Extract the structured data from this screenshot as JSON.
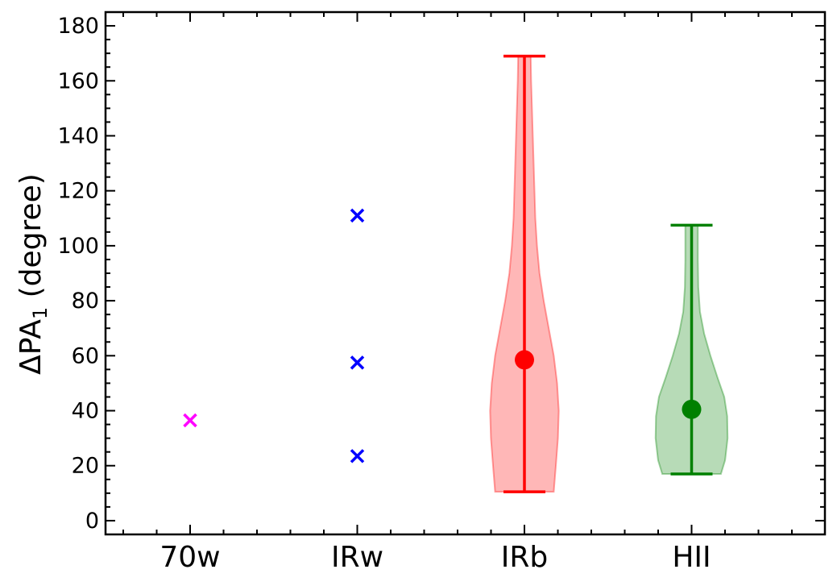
{
  "chart_data": {
    "type": "violin",
    "title": "",
    "xlabel": "",
    "ylabel_prefix": "ΔPA",
    "ylabel_sub": "1",
    "ylabel_suffix": " (degree)",
    "ylim": [
      -5,
      185
    ],
    "yticks": [
      0,
      20,
      40,
      60,
      80,
      100,
      120,
      140,
      160,
      180
    ],
    "categories": [
      "70w",
      "IRw",
      "IRb",
      "HII"
    ],
    "points": [
      {
        "category": "70w",
        "values": [
          36.5
        ],
        "color": "#ff00ff",
        "marker": "x"
      },
      {
        "category": "IRw",
        "values": [
          111,
          57.5,
          23.5
        ],
        "color": "#0000ff",
        "marker": "x"
      }
    ],
    "violins": [
      {
        "category": "IRb",
        "color": "#ff0000",
        "fill": "#ffb3b3",
        "min": 10.5,
        "max": 169,
        "median": 58.5,
        "density": [
          [
            10.5,
            0.7
          ],
          [
            20,
            0.75
          ],
          [
            30,
            0.8
          ],
          [
            40,
            0.82
          ],
          [
            50,
            0.78
          ],
          [
            60,
            0.7
          ],
          [
            70,
            0.58
          ],
          [
            80,
            0.46
          ],
          [
            90,
            0.36
          ],
          [
            100,
            0.3
          ],
          [
            110,
            0.26
          ],
          [
            120,
            0.24
          ],
          [
            130,
            0.22
          ],
          [
            140,
            0.2
          ],
          [
            150,
            0.18
          ],
          [
            160,
            0.16
          ],
          [
            169,
            0.15
          ]
        ]
      },
      {
        "category": "HII",
        "color": "#008000",
        "fill": "#b3d9b3",
        "min": 17,
        "max": 107.5,
        "median": 40.5,
        "density": [
          [
            17,
            0.7
          ],
          [
            22,
            0.8
          ],
          [
            30,
            0.86
          ],
          [
            38,
            0.85
          ],
          [
            45,
            0.78
          ],
          [
            52,
            0.62
          ],
          [
            60,
            0.45
          ],
          [
            68,
            0.3
          ],
          [
            76,
            0.2
          ],
          [
            85,
            0.16
          ],
          [
            95,
            0.15
          ],
          [
            107.5,
            0.15
          ]
        ]
      }
    ]
  }
}
